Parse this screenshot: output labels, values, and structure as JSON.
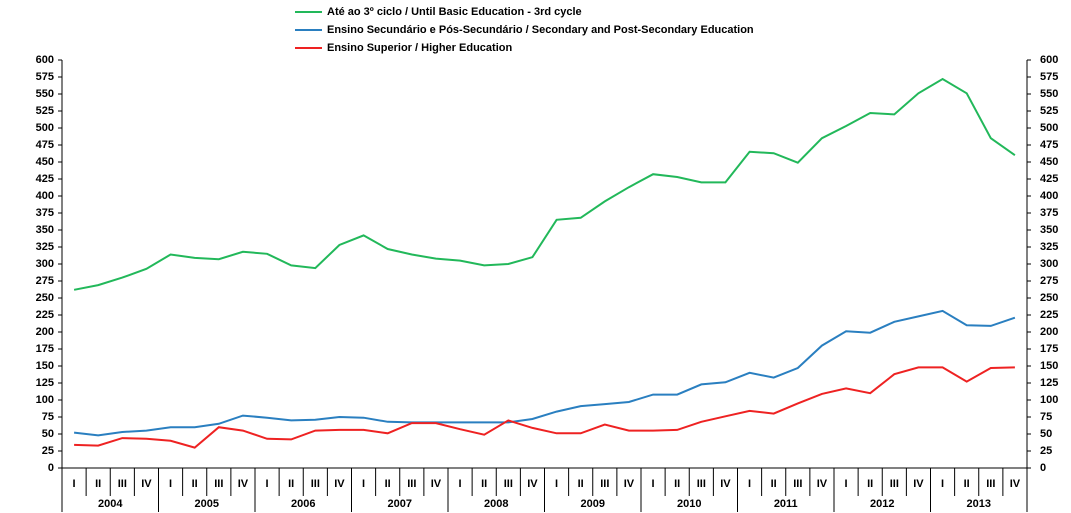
{
  "chart_data": {
    "type": "line",
    "categories": [
      "I",
      "II",
      "III",
      "IV",
      "I",
      "II",
      "III",
      "IV",
      "I",
      "II",
      "III",
      "IV",
      "I",
      "II",
      "III",
      "IV",
      "I",
      "II",
      "III",
      "IV",
      "I",
      "II",
      "III",
      "IV",
      "I",
      "II",
      "III",
      "IV",
      "I",
      "II",
      "III",
      "IV",
      "I",
      "II",
      "III",
      "IV",
      "I",
      "II",
      "III",
      "IV"
    ],
    "years": [
      "2004",
      "2005",
      "2006",
      "2007",
      "2008",
      "2009",
      "2010",
      "2011",
      "2012",
      "2013"
    ],
    "series": [
      {
        "name": "Até ao 3º ciclo / Until Basic Education - 3rd cycle",
        "color": "#22b85a",
        "values": [
          262,
          269,
          280,
          293,
          314,
          309,
          307,
          318,
          315,
          298,
          294,
          328,
          342,
          322,
          314,
          308,
          305,
          298,
          300,
          310,
          365,
          368,
          392,
          413,
          432,
          428,
          420,
          420,
          465,
          463,
          449,
          485,
          503,
          522,
          520,
          551,
          572,
          551,
          485,
          460
        ]
      },
      {
        "name": "Ensino Secundário e Pós-Secundário / Secondary and Post-Secondary Education",
        "color": "#2a7fc0",
        "values": [
          52,
          48,
          53,
          55,
          60,
          60,
          65,
          77,
          74,
          70,
          71,
          75,
          74,
          68,
          67,
          67,
          67,
          67,
          67,
          72,
          83,
          91,
          94,
          97,
          108,
          108,
          123,
          126,
          140,
          133,
          147,
          180,
          201,
          199,
          215,
          223,
          231,
          210,
          209,
          221
        ]
      },
      {
        "name": "Ensino Superior / Higher Education",
        "color": "#ee2222",
        "values": [
          34,
          33,
          44,
          43,
          40,
          30,
          60,
          55,
          43,
          42,
          55,
          56,
          56,
          51,
          66,
          66,
          57,
          49,
          70,
          59,
          51,
          51,
          64,
          55,
          55,
          56,
          68,
          76,
          84,
          80,
          95,
          109,
          117,
          110,
          138,
          148,
          148,
          127,
          147,
          148
        ]
      }
    ],
    "ylim": [
      0,
      600
    ],
    "yticks": [
      0,
      25,
      50,
      75,
      100,
      125,
      150,
      175,
      200,
      225,
      250,
      275,
      300,
      325,
      350,
      375,
      400,
      425,
      450,
      475,
      500,
      525,
      550,
      575,
      600
    ],
    "y2lim": [
      0,
      600
    ],
    "y2ticks": [
      0,
      25,
      50,
      75,
      100,
      125,
      150,
      175,
      200,
      225,
      250,
      275,
      300,
      325,
      350,
      375,
      400,
      425,
      450,
      475,
      500,
      525,
      550,
      575,
      600
    ],
    "legend": "top"
  }
}
